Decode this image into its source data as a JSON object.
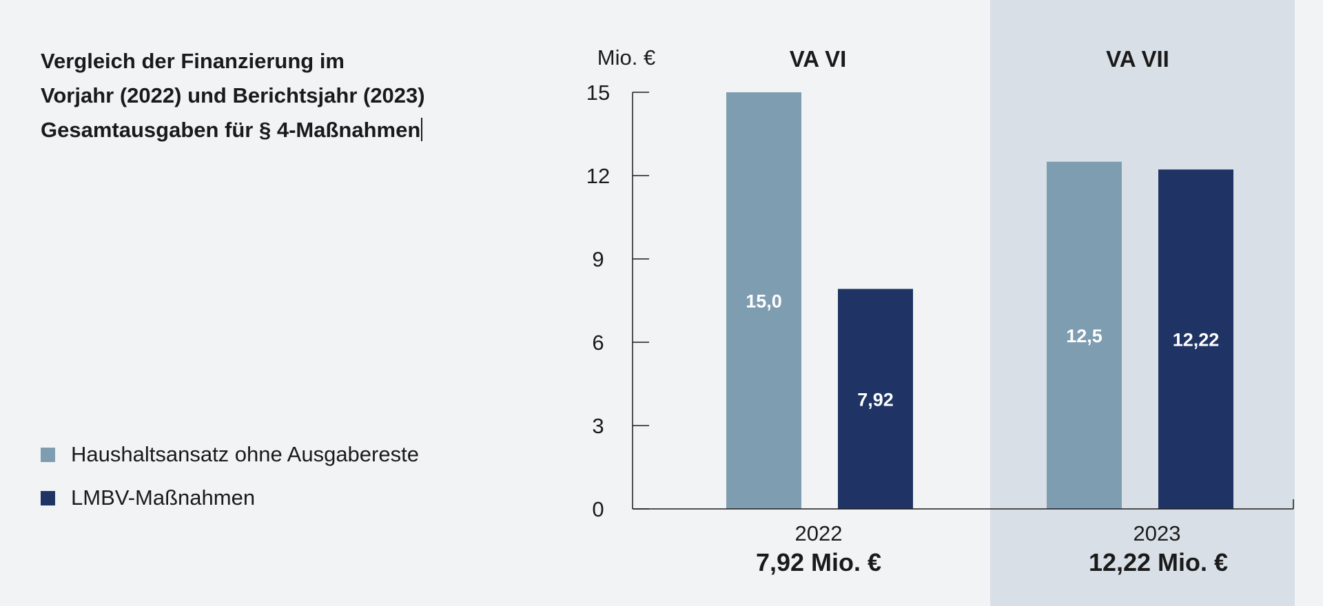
{
  "title": {
    "line1": "Vergleich der Finanzierung im",
    "line2": "Vorjahr (2022) und Berichtsjahr (2023)",
    "line3": "Gesamtausgaben für § 4-Maßnahmen"
  },
  "legend": [
    {
      "label": "Haushaltsansatz ohne Ausgabereste",
      "color": "#7f9db1"
    },
    {
      "label": "LMBV-Maßnahmen",
      "color": "#1f3464"
    }
  ],
  "colors": {
    "haushaltsansatz": "#7f9db1",
    "lmbv": "#1f3464",
    "highlight_panel": "#d9dfe6",
    "background": "#f1f3f4"
  },
  "chart_data": {
    "type": "bar",
    "ylabel": "Mio. €",
    "ylim": [
      0,
      15
    ],
    "yticks": [
      0,
      3,
      6,
      9,
      12,
      15
    ],
    "categories": [
      "2022",
      "2023"
    ],
    "group_headers": [
      "VA VI",
      "VA VII"
    ],
    "group_totals": [
      "7,92 Mio. €",
      "12,22 Mio. €"
    ],
    "highlighted_category": "2023",
    "series": [
      {
        "name": "Haushaltsansatz ohne Ausgabereste",
        "values": [
          15.0,
          12.5
        ],
        "labels": [
          "15,0",
          "12,5"
        ],
        "color": "#7f9db1"
      },
      {
        "name": "LMBV-Maßnahmen",
        "values": [
          7.92,
          12.22
        ],
        "labels": [
          "7,92",
          "12,22"
        ],
        "color": "#1f3464"
      }
    ]
  }
}
